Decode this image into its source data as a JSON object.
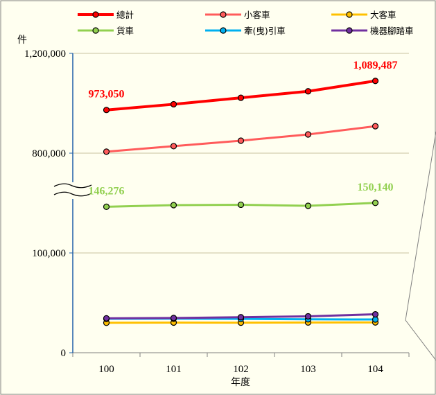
{
  "chart_data": {
    "type": "line",
    "xlabel": "年度",
    "ylabel": "件",
    "categories": [
      "100",
      "101",
      "102",
      "103",
      "104"
    ],
    "axis_break": true,
    "y_tick_labels": [
      "0",
      "100,000",
      "800,000",
      "1,200,000"
    ],
    "y_segments": [
      {
        "data_min": 0,
        "data_max": 200000
      },
      {
        "data_min": 600000,
        "data_max": 1200000
      }
    ],
    "grid": true,
    "legend_position": "top",
    "series": [
      {
        "name": "總計",
        "color": "#FF0000",
        "values": [
          973050,
          996000,
          1022000,
          1048000,
          1089487
        ]
      },
      {
        "name": "小客車",
        "color": "#FF5B5B",
        "values": [
          806000,
          828000,
          850000,
          875000,
          908000
        ]
      },
      {
        "name": "大客車",
        "color": "#FFC000",
        "values": [
          30000,
          30200,
          30100,
          30300,
          30400
        ]
      },
      {
        "name": "貨車",
        "color": "#92D050",
        "values": [
          146276,
          147900,
          148300,
          147200,
          150140
        ]
      },
      {
        "name": "牽(曳)引車",
        "color": "#00B0F0",
        "values": [
          34000,
          34100,
          33900,
          33500,
          33300
        ]
      },
      {
        "name": "機器腳踏車",
        "color": "#7030A0",
        "values": [
          34500,
          34800,
          35600,
          36500,
          38500
        ]
      }
    ],
    "data_labels": [
      {
        "series": "總計",
        "category": "100",
        "text": "973,050",
        "color": "#FF0000"
      },
      {
        "series": "總計",
        "category": "104",
        "text": "1,089,487",
        "color": "#FF0000"
      },
      {
        "series": "貨車",
        "category": "100",
        "text": "146,276",
        "color": "#92D050"
      },
      {
        "series": "貨車",
        "category": "104",
        "text": "150,140",
        "color": "#92D050"
      }
    ]
  }
}
